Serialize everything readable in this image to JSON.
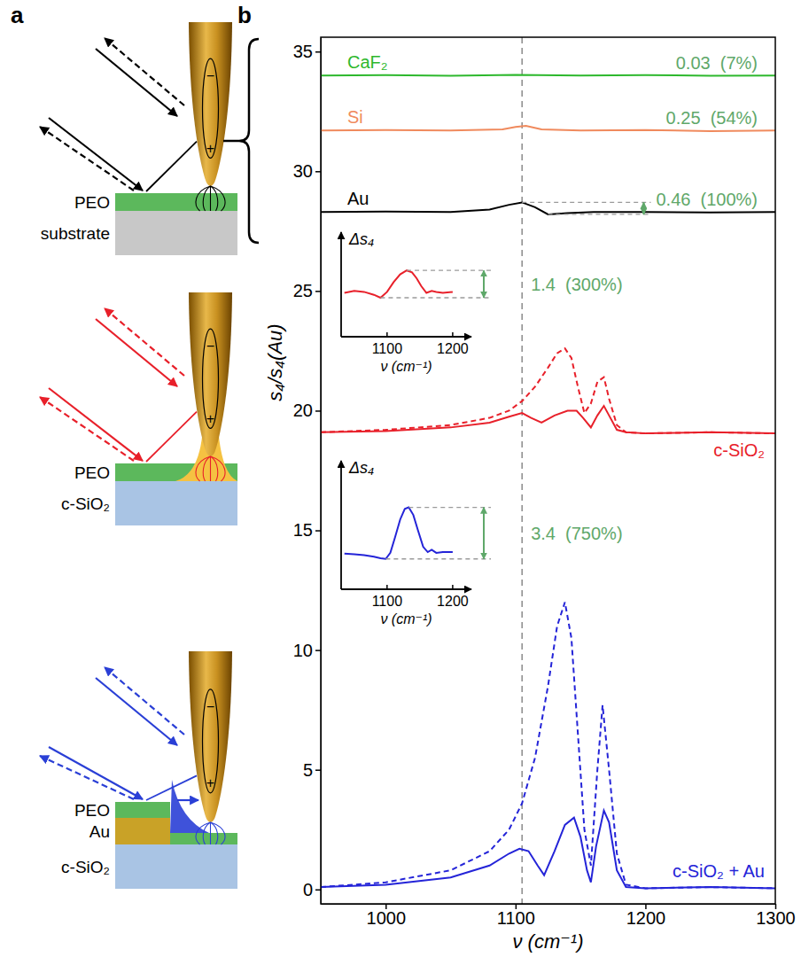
{
  "chart_data": [
    {
      "type": "line",
      "panel": "b",
      "x_label": "ν (cm⁻¹)",
      "y_label": "s₄/s₄(Au)",
      "xlim": [
        950,
        1300
      ],
      "ylim": [
        -0.6,
        35.6
      ],
      "xticks": [
        1000,
        1100,
        1200,
        1300
      ],
      "yticks": [
        0,
        5,
        10,
        15,
        20,
        25,
        30,
        35
      ],
      "vline_x": 1105,
      "series": [
        {
          "name": "CaF₂",
          "color": "#2db82d",
          "line_style": "solid",
          "annotation": "0.03  (7%)",
          "x": [
            950,
            1000,
            1050,
            1100,
            1150,
            1200,
            1250,
            1300
          ],
          "values": [
            34.0,
            34.02,
            33.99,
            34.03,
            34.0,
            34.02,
            33.99,
            34.0
          ]
        },
        {
          "name": "Si",
          "color": "#f08a5d",
          "line_style": "solid",
          "annotation": "0.25  (54%)",
          "x": [
            950,
            1000,
            1050,
            1090,
            1100,
            1108,
            1120,
            1150,
            1200,
            1250,
            1300
          ],
          "values": [
            31.7,
            31.72,
            31.7,
            31.75,
            31.85,
            31.9,
            31.75,
            31.7,
            31.72,
            31.68,
            31.7
          ]
        },
        {
          "name": "Au",
          "color": "#000000",
          "line_style": "solid",
          "annotation": "0.46  (100%)",
          "x": [
            950,
            1000,
            1050,
            1080,
            1095,
            1105,
            1115,
            1125,
            1140,
            1160,
            1200,
            1250,
            1300
          ],
          "values": [
            28.3,
            28.32,
            28.3,
            28.4,
            28.6,
            28.7,
            28.5,
            28.2,
            28.25,
            28.3,
            28.3,
            28.28,
            28.3
          ]
        },
        {
          "name": "c-SiO₂",
          "color": "#e8202a",
          "line_style": "solid",
          "x": [
            950,
            1000,
            1050,
            1080,
            1095,
            1105,
            1112,
            1120,
            1130,
            1140,
            1147,
            1152,
            1158,
            1163,
            1168,
            1172,
            1178,
            1185,
            1200,
            1250,
            1300
          ],
          "values": [
            19.1,
            19.15,
            19.3,
            19.5,
            19.75,
            19.9,
            19.7,
            19.5,
            19.8,
            20.0,
            20.0,
            19.7,
            19.3,
            19.8,
            20.2,
            19.8,
            19.2,
            19.1,
            19.05,
            19.1,
            19.05
          ]
        },
        {
          "color": "#e8202a",
          "line_style": "dashed",
          "x": [
            950,
            1000,
            1050,
            1080,
            1095,
            1105,
            1115,
            1125,
            1132,
            1138,
            1143,
            1148,
            1153,
            1158,
            1163,
            1168,
            1172,
            1178,
            1185,
            1200,
            1250,
            1300
          ],
          "values": [
            19.1,
            19.2,
            19.4,
            19.7,
            20.0,
            20.4,
            21.0,
            21.8,
            22.4,
            22.6,
            22.2,
            21.0,
            19.9,
            20.3,
            21.2,
            21.4,
            20.5,
            19.4,
            19.1,
            19.05,
            19.1,
            19.05
          ]
        },
        {
          "name": "c-SiO₂ + Au",
          "color": "#2424d8",
          "line_style": "solid",
          "x": [
            950,
            1000,
            1050,
            1080,
            1095,
            1103,
            1110,
            1117,
            1122,
            1130,
            1138,
            1145,
            1150,
            1155,
            1158,
            1162,
            1168,
            1172,
            1178,
            1185,
            1200,
            1250,
            1300
          ],
          "values": [
            0.1,
            0.2,
            0.5,
            1.0,
            1.5,
            1.7,
            1.6,
            1.0,
            0.6,
            1.6,
            2.7,
            3.0,
            2.2,
            0.8,
            0.3,
            1.8,
            3.3,
            2.8,
            0.8,
            0.1,
            0.05,
            0.1,
            0.05
          ]
        },
        {
          "color": "#2424d8",
          "line_style": "dashed",
          "x": [
            950,
            1000,
            1050,
            1080,
            1095,
            1105,
            1115,
            1125,
            1132,
            1138,
            1143,
            1148,
            1153,
            1158,
            1163,
            1167,
            1172,
            1178,
            1185,
            1200,
            1250,
            1300
          ],
          "values": [
            0.1,
            0.3,
            0.8,
            1.6,
            2.5,
            3.6,
            5.5,
            8.5,
            11.0,
            12.0,
            10.5,
            6.5,
            2.5,
            1.0,
            5.0,
            7.7,
            5.0,
            1.5,
            0.2,
            0.05,
            0.1,
            0.05
          ]
        }
      ]
    },
    {
      "type": "line",
      "x_label": "ν (cm⁻¹)",
      "y_label": "Δs₄",
      "xlim": [
        1030,
        1215
      ],
      "ylim": [
        -2,
        3
      ],
      "xticks": [
        1100,
        1200
      ],
      "yticks": [],
      "tick_labels": "x",
      "color": "#e8202a",
      "line_style": "solid",
      "annotation": "1.4  (300%)",
      "x": [
        1035,
        1050,
        1065,
        1080,
        1090,
        1100,
        1110,
        1120,
        1130,
        1138,
        1145,
        1152,
        1160,
        1168,
        1175,
        1185,
        1200
      ],
      "values": [
        0.25,
        0.35,
        0.3,
        0.15,
        0.0,
        0.3,
        0.8,
        1.2,
        1.4,
        1.3,
        1.0,
        0.6,
        0.25,
        0.35,
        0.3,
        0.25,
        0.3
      ]
    },
    {
      "type": "line",
      "x_label": "ν (cm⁻¹)",
      "y_label": "Δs₄",
      "xlim": [
        1030,
        1215
      ],
      "ylim": [
        -2,
        6
      ],
      "xticks": [
        1100,
        1200
      ],
      "yticks": [],
      "tick_labels": "x",
      "color": "#2424d8",
      "line_style": "solid",
      "annotation": "3.4  (750%)",
      "x": [
        1035,
        1050,
        1065,
        1080,
        1090,
        1098,
        1105,
        1112,
        1120,
        1127,
        1133,
        1140,
        1147,
        1155,
        1162,
        1168,
        1175,
        1185,
        1200
      ],
      "values": [
        0.35,
        0.3,
        0.25,
        0.15,
        0.05,
        0.0,
        0.4,
        1.4,
        2.6,
        3.3,
        3.4,
        2.9,
        1.9,
        0.8,
        0.45,
        0.6,
        0.4,
        0.45,
        0.45
      ]
    }
  ],
  "diagram": {
    "panel": "a",
    "tip_charges": [
      "−",
      "+"
    ],
    "setups": [
      {
        "layers": [
          "PEO",
          "substrate"
        ]
      },
      {
        "layers": [
          "PEO",
          "c-SiO₂"
        ]
      },
      {
        "layers": [
          "PEO",
          "Au",
          "c-SiO₂"
        ]
      }
    ]
  }
}
